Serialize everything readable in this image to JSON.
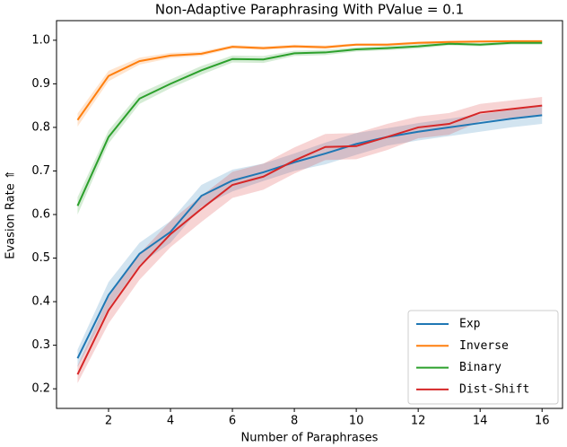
{
  "chart_data": {
    "type": "line",
    "title": "Non-Adaptive Paraphrasing With PValue = 0.1",
    "x_label": "Number of Paraphrases",
    "y_label": "Evasion Rate ⇑",
    "x": [
      1,
      2,
      3,
      4,
      5,
      6,
      7,
      8,
      9,
      10,
      11,
      12,
      13,
      14,
      15,
      16
    ],
    "xlim": [
      0.32,
      16.66
    ],
    "xticks": [
      2,
      4,
      6,
      8,
      10,
      12,
      14,
      16
    ],
    "ylim": [
      0.155,
      1.045
    ],
    "yticks": [
      0.2,
      0.3,
      0.4,
      0.5,
      0.6,
      0.7,
      0.8,
      0.9,
      {
        "value": 1,
        "label": "1.0"
      }
    ],
    "legend": "lower right",
    "series": [
      {
        "name": "Exp",
        "color": "#1f77b4",
        "values": [
          0.27,
          0.415,
          0.51,
          0.56,
          0.643,
          0.678,
          0.697,
          0.72,
          0.74,
          0.762,
          0.778,
          0.79,
          0.8,
          0.81,
          0.82,
          0.828
        ],
        "spread": [
          0.02,
          0.03,
          0.025,
          0.025,
          0.025,
          0.025,
          0.02,
          0.02,
          0.025,
          0.025,
          0.02,
          0.02,
          0.02,
          0.02,
          0.02,
          0.02
        ]
      },
      {
        "name": "Inverse",
        "color": "#ff7f0e",
        "values": [
          0.817,
          0.918,
          0.952,
          0.965,
          0.969,
          0.985,
          0.982,
          0.986,
          0.984,
          0.99,
          0.99,
          0.994,
          0.996,
          0.997,
          0.998,
          0.998
        ],
        "spread": [
          0.015,
          0.012,
          0.008,
          0.006,
          0.005,
          0.004,
          0.004,
          0.004,
          0.004,
          0.003,
          0.003,
          0.003,
          0.003,
          0.002,
          0.002,
          0.002
        ]
      },
      {
        "name": "Binary",
        "color": "#2ca02c",
        "values": [
          0.62,
          0.778,
          0.866,
          0.9,
          0.931,
          0.957,
          0.956,
          0.97,
          0.972,
          0.979,
          0.982,
          0.986,
          0.992,
          0.99,
          0.994,
          0.994
        ],
        "spread": [
          0.02,
          0.015,
          0.012,
          0.01,
          0.01,
          0.008,
          0.008,
          0.006,
          0.006,
          0.005,
          0.005,
          0.005,
          0.004,
          0.004,
          0.004,
          0.004
        ]
      },
      {
        "name": "Dist-Shift",
        "color": "#d62728",
        "values": [
          0.233,
          0.38,
          0.48,
          0.555,
          0.613,
          0.668,
          0.687,
          0.724,
          0.755,
          0.757,
          0.778,
          0.8,
          0.808,
          0.834,
          0.842,
          0.85
        ],
        "spread": [
          0.02,
          0.03,
          0.03,
          0.03,
          0.03,
          0.03,
          0.03,
          0.03,
          0.03,
          0.03,
          0.03,
          0.025,
          0.025,
          0.02,
          0.02,
          0.02
        ]
      }
    ]
  }
}
